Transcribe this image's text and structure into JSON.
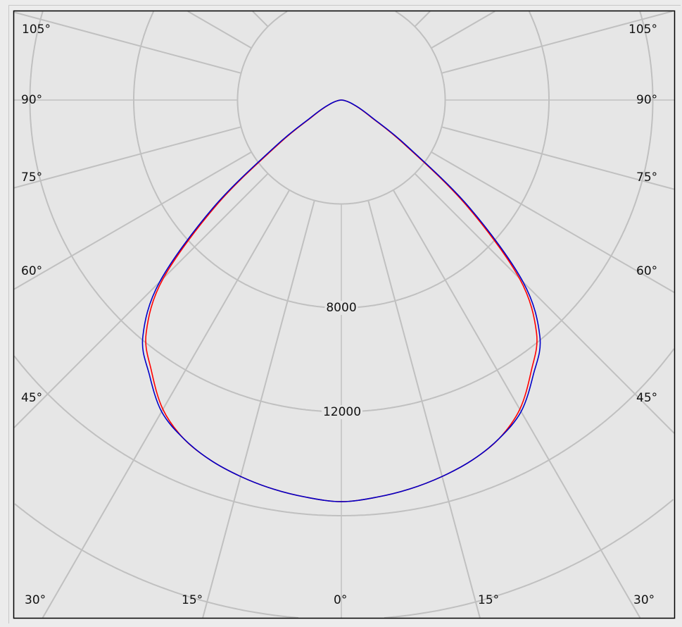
{
  "chart_data": {
    "type": "polar-line",
    "title": "",
    "angle_unit": "deg",
    "angle_zero": "down",
    "radial_ticks": [
      4000,
      8000,
      12000,
      16000,
      20000,
      24000
    ],
    "radial_tick_labels": [
      "8000",
      "12000"
    ],
    "radial_range": [
      0,
      24000
    ],
    "angular_grid_step": 15,
    "angle_labels_left": [
      "105°",
      "90°",
      "75°",
      "60°",
      "45°"
    ],
    "angle_labels_right": [
      "105°",
      "90°",
      "75°",
      "60°",
      "45°"
    ],
    "angle_labels_bottom": [
      "30°",
      "15°",
      "0°",
      "15°",
      "30°"
    ],
    "grid": true,
    "angles": [
      0,
      5,
      10,
      15,
      20,
      25,
      30,
      35,
      40,
      45,
      50,
      55,
      60,
      65,
      70,
      75,
      80,
      85,
      90
    ],
    "series": [
      {
        "color": "#ff0000",
        "symmetric": true,
        "values": [
          15460,
          15350,
          15200,
          15000,
          14750,
          14380,
          13750,
          12750,
          11700,
          9700,
          6250,
          2950,
          1330,
          800,
          480,
          290,
          145,
          60,
          0
        ]
      },
      {
        "color": "#0000c8",
        "symmetric": true,
        "values": [
          15460,
          15350,
          15200,
          15000,
          14750,
          14380,
          13850,
          12900,
          11900,
          9900,
          6450,
          3100,
          1410,
          840,
          500,
          300,
          150,
          60,
          0
        ]
      }
    ]
  },
  "colors": {
    "background": "#e6e6e6",
    "grid": "#c0c0c0",
    "frame": "#000000"
  }
}
